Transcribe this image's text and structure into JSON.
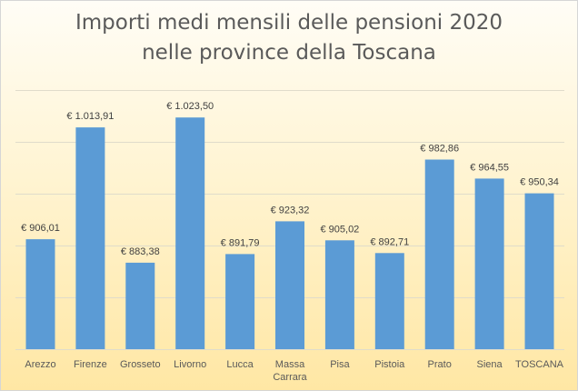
{
  "chart_data": {
    "type": "bar",
    "title_lines": [
      "Importi medi mensili delle pensioni 2020",
      "nelle province della Toscana"
    ],
    "categories": [
      "Arezzo",
      "Firenze",
      "Grosseto",
      "Livorno",
      "Lucca",
      "Massa Carrara",
      "Pisa",
      "Pistoia",
      "Prato",
      "Siena",
      "TOSCANA"
    ],
    "category_lines": [
      [
        "Arezzo"
      ],
      [
        "Firenze"
      ],
      [
        "Grosseto"
      ],
      [
        "Livorno"
      ],
      [
        "Lucca"
      ],
      [
        "Massa",
        "Carrara"
      ],
      [
        "Pisa"
      ],
      [
        "Pistoia"
      ],
      [
        "Prato"
      ],
      [
        "Siena"
      ],
      [
        "TOSCANA"
      ]
    ],
    "values": [
      906.01,
      1013.91,
      883.38,
      1023.5,
      891.79,
      923.32,
      905.02,
      892.71,
      982.86,
      964.55,
      950.34
    ],
    "data_labels": [
      "€ 906,01",
      "€ 1.013,91",
      "€ 883,38",
      "€ 1.023,50",
      "€ 891,79",
      "€ 923,32",
      "€ 905,02",
      "€ 892,71",
      "€ 982,86",
      "€ 964,55",
      "€ 950,34"
    ],
    "ylim": [
      800,
      1050
    ],
    "gridlines": [
      800,
      850,
      900,
      950,
      1000,
      1050
    ],
    "grid": true,
    "legend": "none",
    "xlabel": "",
    "ylabel": "",
    "bar_color": "#5b9bd5"
  }
}
